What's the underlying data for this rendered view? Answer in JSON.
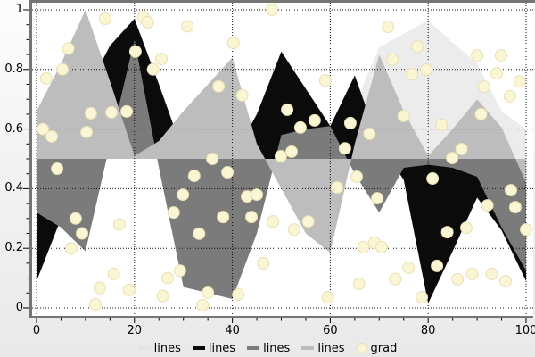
{
  "chart_data": {
    "type": "area",
    "description": "Four area series filled to baseline 0.5 plus one scatter series",
    "baseline": 0.5,
    "x": [
      0,
      5,
      10,
      15,
      20,
      25,
      30,
      35,
      40,
      45,
      50,
      55,
      60,
      65,
      70,
      75,
      80,
      85,
      90,
      95,
      100
    ],
    "series": [
      {
        "name": "lines",
        "color": "#ececec",
        "values": [
          0.5,
          0.5,
          0.5,
          0.5,
          0.5,
          0.5,
          0.5,
          0.5,
          0.5,
          0.5,
          0.5,
          0.5,
          0.52,
          0.68,
          0.875,
          0.92,
          0.965,
          0.89,
          0.82,
          0.66,
          0.6
        ]
      },
      {
        "name": "lines",
        "color": "#0b0b0b",
        "values": [
          0.09,
          0.3,
          0.72,
          0.88,
          0.97,
          0.75,
          0.52,
          0.5,
          0.5,
          0.65,
          0.86,
          0.735,
          0.61,
          0.78,
          0.55,
          0.43,
          0.015,
          0.19,
          0.37,
          0.26,
          0.09
        ]
      },
      {
        "name": "lines",
        "color": "#7b7b7b",
        "values": [
          0.32,
          0.27,
          0.19,
          0.55,
          0.9,
          0.47,
          0.07,
          0.05,
          0.03,
          0.25,
          0.58,
          0.6,
          0.61,
          0.45,
          0.32,
          0.47,
          0.48,
          0.47,
          0.44,
          0.27,
          0.125
        ]
      },
      {
        "name": "lines",
        "color": "#bdbdbd",
        "values": [
          0.66,
          0.82,
          1.0,
          0.76,
          0.51,
          0.56,
          0.66,
          0.75,
          0.84,
          0.55,
          0.4,
          0.25,
          0.185,
          0.55,
          0.85,
          0.66,
          0.51,
          0.6,
          0.7,
          0.605,
          0.42
        ]
      }
    ],
    "scatter": {
      "name": "grad",
      "fill": "#faf5d2",
      "stroke": "#e7e0b5",
      "radius": 6.5,
      "points": [
        [
          1.3,
          0.6
        ],
        [
          2.0,
          0.77
        ],
        [
          3.1,
          0.575
        ],
        [
          4.2,
          0.467
        ],
        [
          5.3,
          0.8
        ],
        [
          6.5,
          0.87
        ],
        [
          7.1,
          0.2
        ],
        [
          8.0,
          0.3
        ],
        [
          9.3,
          0.25
        ],
        [
          10.2,
          0.59
        ],
        [
          11.1,
          0.653
        ],
        [
          12.0,
          0.012
        ],
        [
          12.9,
          0.067
        ],
        [
          14.0,
          0.97
        ],
        [
          15.3,
          0.656
        ],
        [
          15.8,
          0.114
        ],
        [
          16.9,
          0.28
        ],
        [
          18.4,
          0.659
        ],
        [
          18.9,
          0.06
        ],
        [
          20.2,
          0.86
        ],
        [
          21.8,
          0.975
        ],
        [
          22.7,
          0.958
        ],
        [
          23.8,
          0.8
        ],
        [
          25.5,
          0.835
        ],
        [
          25.8,
          0.04
        ],
        [
          26.8,
          0.1
        ],
        [
          28.0,
          0.32
        ],
        [
          29.3,
          0.125
        ],
        [
          29.9,
          0.38
        ],
        [
          30.8,
          0.945
        ],
        [
          32.2,
          0.443
        ],
        [
          33.2,
          0.249
        ],
        [
          33.9,
          0.009
        ],
        [
          35.0,
          0.051
        ],
        [
          35.9,
          0.5
        ],
        [
          37.2,
          0.743
        ],
        [
          38.1,
          0.305
        ],
        [
          39.0,
          0.455
        ],
        [
          40.2,
          0.889
        ],
        [
          41.2,
          0.045
        ],
        [
          42.0,
          0.713
        ],
        [
          43.0,
          0.374
        ],
        [
          43.9,
          0.305
        ],
        [
          45.0,
          0.38
        ],
        [
          46.3,
          0.15
        ],
        [
          48.1,
          1.0
        ],
        [
          48.3,
          0.29
        ],
        [
          49.9,
          0.509
        ],
        [
          51.2,
          0.665
        ],
        [
          52.1,
          0.524
        ],
        [
          52.6,
          0.263
        ],
        [
          53.9,
          0.605
        ],
        [
          55.5,
          0.29
        ],
        [
          56.8,
          0.629
        ],
        [
          59.0,
          0.763
        ],
        [
          59.5,
          0.036
        ],
        [
          61.4,
          0.404
        ],
        [
          63.0,
          0.535
        ],
        [
          64.1,
          0.62
        ],
        [
          65.4,
          0.44
        ],
        [
          65.9,
          0.081
        ],
        [
          66.8,
          0.204
        ],
        [
          68.0,
          0.584
        ],
        [
          69.0,
          0.219
        ],
        [
          69.6,
          0.368
        ],
        [
          70.5,
          0.204
        ],
        [
          71.8,
          0.943
        ],
        [
          72.7,
          0.833
        ],
        [
          73.3,
          0.097
        ],
        [
          75.0,
          0.644
        ],
        [
          76.0,
          0.135
        ],
        [
          76.7,
          0.784
        ],
        [
          77.8,
          0.877
        ],
        [
          78.7,
          0.036
        ],
        [
          79.6,
          0.799
        ],
        [
          80.9,
          0.434
        ],
        [
          81.8,
          0.141
        ],
        [
          82.7,
          0.614
        ],
        [
          83.9,
          0.254
        ],
        [
          84.9,
          0.503
        ],
        [
          86.0,
          0.096
        ],
        [
          86.8,
          0.533
        ],
        [
          87.8,
          0.269
        ],
        [
          89.0,
          0.114
        ],
        [
          90.0,
          0.847
        ],
        [
          90.8,
          0.65
        ],
        [
          91.4,
          0.742
        ],
        [
          92.1,
          0.344
        ],
        [
          93.0,
          0.114
        ],
        [
          94.0,
          0.787
        ],
        [
          94.9,
          0.847
        ],
        [
          95.8,
          0.09
        ],
        [
          96.7,
          0.71
        ],
        [
          96.9,
          0.395
        ],
        [
          97.8,
          0.338
        ],
        [
          98.7,
          0.76
        ],
        [
          100.0,
          0.263
        ]
      ]
    },
    "axes": {
      "x": {
        "min": 0,
        "max": 100,
        "major_ticks": [
          0,
          20,
          40,
          60,
          80,
          100
        ],
        "labels": [
          "0",
          "20",
          "40",
          "60",
          "80",
          "100"
        ],
        "minor_step": 5
      },
      "y": {
        "min": 0,
        "max": 1,
        "major_ticks": [
          0,
          0.2,
          0.4,
          0.6,
          0.8,
          1
        ],
        "labels": [
          "0",
          "0.2",
          "0.4",
          "0.6",
          "0.8",
          "1"
        ],
        "minor_step": 0.05
      }
    },
    "grid": {
      "on": true,
      "style": "dotted",
      "color": "#111111"
    },
    "legend": {
      "position": "bottom-center",
      "items": [
        {
          "label": "lines",
          "swatch": "line",
          "color": "#e4e4e4"
        },
        {
          "label": "lines",
          "swatch": "line",
          "color": "#0b0b0b"
        },
        {
          "label": "lines",
          "swatch": "line",
          "color": "#7b7b7b"
        },
        {
          "label": "lines",
          "swatch": "line",
          "color": "#bdbdbd"
        },
        {
          "label": "grad",
          "swatch": "circle",
          "color": "#faf5d2"
        }
      ]
    },
    "frame_color": "#757575",
    "canvas_color": "#ffffff"
  }
}
